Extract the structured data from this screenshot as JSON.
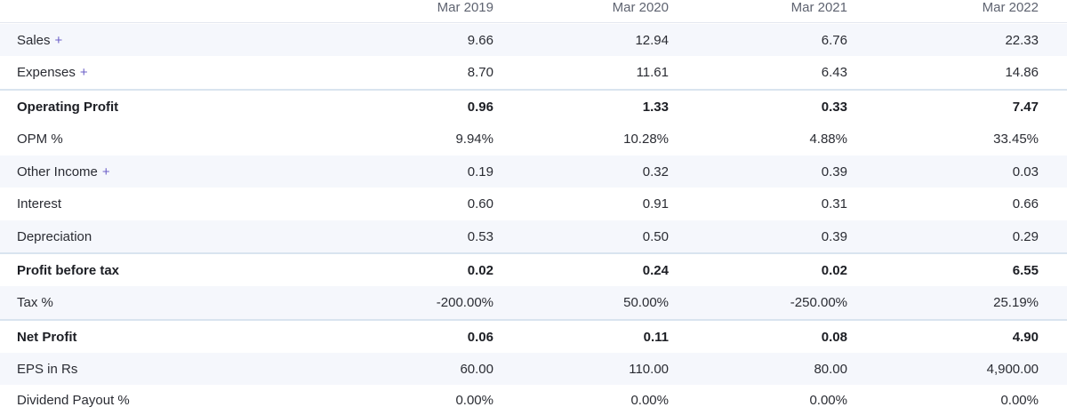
{
  "columns": [
    "Mar 2019",
    "Mar 2020",
    "Mar 2021",
    "Mar 2022"
  ],
  "rows": [
    {
      "label": "Sales",
      "expand": "+",
      "values": [
        "9.66",
        "12.94",
        "6.76",
        "22.33"
      ]
    },
    {
      "label": "Expenses",
      "expand": "+",
      "values": [
        "8.70",
        "11.61",
        "6.43",
        "14.86"
      ]
    },
    {
      "label": "Operating Profit",
      "values": [
        "0.96",
        "1.33",
        "0.33",
        "7.47"
      ]
    },
    {
      "label": "OPM %",
      "values": [
        "9.94%",
        "10.28%",
        "4.88%",
        "33.45%"
      ]
    },
    {
      "label": "Other Income",
      "expand": "+",
      "values": [
        "0.19",
        "0.32",
        "0.39",
        "0.03"
      ]
    },
    {
      "label": "Interest",
      "values": [
        "0.60",
        "0.91",
        "0.31",
        "0.66"
      ]
    },
    {
      "label": "Depreciation",
      "values": [
        "0.53",
        "0.50",
        "0.39",
        "0.29"
      ]
    },
    {
      "label": "Profit before tax",
      "values": [
        "0.02",
        "0.24",
        "0.02",
        "6.55"
      ]
    },
    {
      "label": "Tax %",
      "values": [
        "-200.00%",
        "50.00%",
        "-250.00%",
        "25.19%"
      ]
    },
    {
      "label": "Net Profit",
      "values": [
        "0.06",
        "0.11",
        "0.08",
        "4.90"
      ]
    },
    {
      "label": "EPS in Rs",
      "values": [
        "60.00",
        "110.00",
        "80.00",
        "4,900.00"
      ]
    },
    {
      "label": "Dividend Payout %",
      "values": [
        "0.00%",
        "0.00%",
        "0.00%",
        "0.00%"
      ]
    }
  ]
}
